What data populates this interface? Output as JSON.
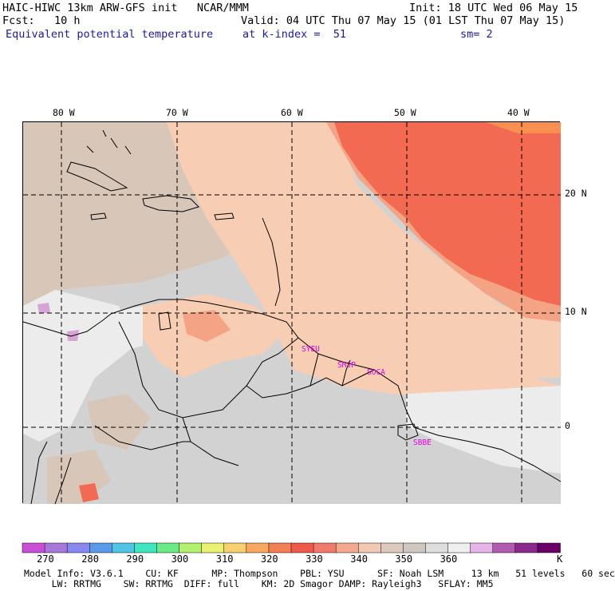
{
  "header": {
    "line1_left": "HAIC-HIWC 13km ARW-GFS init   NCAR/MMM",
    "line1_right": "Init: 18 UTC Wed 06 May 15",
    "line2_left": "Fcst:   10 h",
    "line2_right": "Valid: 04 UTC Thu 07 May 15 (01 LST Thu 07 May 15)",
    "field_name": "Equivalent potential temperature",
    "level": "at k-index =  51",
    "smoothing": "sm= 2"
  },
  "map": {
    "longitudes": [
      "80 W",
      "70 W",
      "60 W",
      "50 W",
      "40 W"
    ],
    "latitudes": [
      "20 N",
      "10 N",
      "0"
    ],
    "stations": [
      "SYEU",
      "SMJP",
      "SOCA",
      "SBBE"
    ],
    "colors": {
      "light_grey": "#ececec",
      "grey": "#d2d2d2",
      "tan": "#d8c6b8",
      "peach": "#f7cdb4",
      "salmon": "#f4a484",
      "coral": "#f26a52",
      "red": "#f05a4a",
      "orange": "#f99050",
      "lavender": "#d7a4d6"
    }
  },
  "colorbar": {
    "unit": "K",
    "colors": [
      "#c84fd6",
      "#a878d8",
      "#8888ee",
      "#5b9ae8",
      "#50c4e4",
      "#40e6c0",
      "#6cea88",
      "#b4f070",
      "#ecf070",
      "#f6d070",
      "#f9a860",
      "#f27f55",
      "#f05a4a",
      "#f27a6a",
      "#f5a890",
      "#f2c9b2",
      "#dcc9bc",
      "#cfc7c2",
      "#dedede",
      "#efefef",
      "#e6b4e6",
      "#b05ab0",
      "#8a2a8a",
      "#6a006a"
    ],
    "labels": [
      "270",
      "280",
      "290",
      "300",
      "310",
      "320",
      "330",
      "340",
      "350",
      "360"
    ]
  },
  "model_info": {
    "line1": "Model Info: V3.6.1    CU: KF      MP: Thompson    PBL: YSU      SF: Noah LSM     13 km   51 levels   60 sec",
    "line2": "     LW: RRTMG    SW: RRTMG  DIFF: full    KM: 2D Smagor DAMP: Rayleigh3   SFLAY: MM5"
  }
}
